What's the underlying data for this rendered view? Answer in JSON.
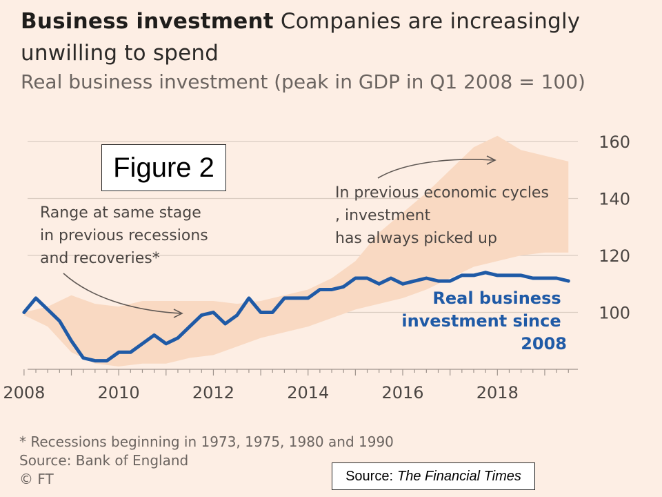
{
  "headline": {
    "bold": "Business investment",
    "rest": "Companies are increasingly unwilling to spend"
  },
  "subtitle": "Real business investment (peak in GDP in Q1 2008 = 100)",
  "figure_label": "Figure 2",
  "footnote": "* Recessions beginning in 1973, 1975, 1980 and 1990",
  "source": "Source: Bank of England",
  "copyright": "© FT",
  "attribution": {
    "prefix": "Source:",
    "publication": "The Financial Times"
  },
  "colors": {
    "line": "#1f5aa6",
    "band": "#f9d9c2",
    "background": "#fdeee4",
    "grid": "#d9cbc0"
  },
  "chart_data": {
    "type": "line",
    "ylim": [
      80,
      160
    ],
    "xlim": [
      2007.9,
      2019.7
    ],
    "yticks": [
      100,
      120,
      140,
      160
    ],
    "xtick_labels": [
      "2008",
      "2010",
      "2012",
      "2014",
      "2016",
      "2018"
    ],
    "xticks": [
      2008,
      2010,
      2012,
      2014,
      2016,
      2018
    ],
    "grid": true,
    "annotations": [
      "Range at same stage in previous recessions and recoveries*",
      "In previous economic cycles, investment has always picked up",
      "Real business investment since 2008"
    ],
    "series": [
      {
        "name": "Real business investment since 2008",
        "x": [
          2008.0,
          2008.25,
          2008.5,
          2008.75,
          2009.0,
          2009.25,
          2009.5,
          2009.75,
          2010.0,
          2010.25,
          2010.5,
          2010.75,
          2011.0,
          2011.25,
          2011.5,
          2011.75,
          2012.0,
          2012.25,
          2012.5,
          2012.75,
          2013.0,
          2013.25,
          2013.5,
          2013.75,
          2014.0,
          2014.25,
          2014.5,
          2014.75,
          2015.0,
          2015.25,
          2015.5,
          2015.75,
          2016.0,
          2016.25,
          2016.5,
          2016.75,
          2017.0,
          2017.25,
          2017.5,
          2017.75,
          2018.0,
          2018.25,
          2018.5,
          2018.75,
          2019.0,
          2019.25,
          2019.5
        ],
        "values": [
          100,
          105,
          101,
          97,
          90,
          84,
          83,
          83,
          86,
          86,
          89,
          92,
          89,
          91,
          95,
          99,
          100,
          96,
          99,
          105,
          100,
          100,
          105,
          105,
          105,
          108,
          108,
          109,
          112,
          112,
          110,
          112,
          110,
          111,
          112,
          111,
          111,
          113,
          113,
          114,
          113,
          113,
          113,
          112,
          112,
          112,
          111
        ]
      },
      {
        "name": "Range at same stage in previous recessions and recoveries",
        "x": [
          2008.0,
          2008.5,
          2009.0,
          2009.5,
          2010.0,
          2010.5,
          2011.0,
          2011.5,
          2012.0,
          2012.5,
          2013.0,
          2013.5,
          2014.0,
          2014.5,
          2015.0,
          2015.5,
          2016.0,
          2016.5,
          2017.0,
          2017.5,
          2018.0,
          2018.5,
          2019.0,
          2019.5
        ],
        "upper": [
          100,
          102,
          106,
          103,
          102,
          104,
          104,
          104,
          104,
          103,
          104,
          106,
          108,
          112,
          118,
          128,
          135,
          142,
          150,
          158,
          162,
          157,
          155,
          153
        ],
        "lower": [
          99,
          95,
          86,
          82,
          81,
          82,
          82,
          84,
          85,
          88,
          91,
          93,
          95,
          98,
          101,
          103,
          105,
          108,
          112,
          116,
          118,
          120,
          121,
          121
        ]
      }
    ]
  }
}
